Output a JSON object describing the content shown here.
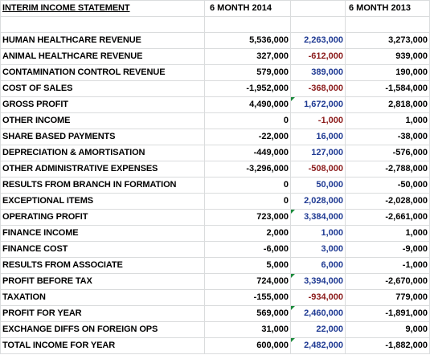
{
  "headers": {
    "statement": "INTERIM INCOME STATEMENT",
    "period_2014": "6 MONTH 2014",
    "period_2013": "6 MONTH 2013"
  },
  "rows": [
    {
      "label": "HUMAN HEALTHCARE REVENUE",
      "v2014": "5,536,000",
      "change": "2,263,000",
      "v2013": "3,273,000",
      "change_color": "blue",
      "flag": false
    },
    {
      "label": "ANIMAL HEALTHCARE REVENUE",
      "v2014": "327,000",
      "change": "-612,000",
      "v2013": "939,000",
      "change_color": "red",
      "flag": false
    },
    {
      "label": "CONTAMINATION CONTROL REVENUE",
      "v2014": "579,000",
      "change": "389,000",
      "v2013": "190,000",
      "change_color": "blue",
      "flag": false
    },
    {
      "label": "COST OF SALES",
      "v2014": "-1,952,000",
      "change": "-368,000",
      "v2013": "-1,584,000",
      "change_color": "red",
      "flag": false
    },
    {
      "label": "GROSS PROFIT",
      "v2014": "4,490,000",
      "change": "1,672,000",
      "v2013": "2,818,000",
      "change_color": "blue",
      "flag": true
    },
    {
      "label": "OTHER INCOME",
      "v2014": "0",
      "change": "-1,000",
      "v2013": "1,000",
      "change_color": "red",
      "flag": false
    },
    {
      "label": "SHARE BASED PAYMENTS",
      "v2014": "-22,000",
      "change": "16,000",
      "v2013": "-38,000",
      "change_color": "blue",
      "flag": false
    },
    {
      "label": "DEPRECIATION & AMORTISATION",
      "v2014": "-449,000",
      "change": "127,000",
      "v2013": "-576,000",
      "change_color": "blue",
      "flag": false
    },
    {
      "label": "OTHER ADMINISTRATIVE EXPENSES",
      "v2014": "-3,296,000",
      "change": "-508,000",
      "v2013": "-2,788,000",
      "change_color": "red",
      "flag": false
    },
    {
      "label": "RESULTS FROM BRANCH IN FORMATION",
      "v2014": "0",
      "change": "50,000",
      "v2013": "-50,000",
      "change_color": "blue",
      "flag": false
    },
    {
      "label": "EXCEPTIONAL ITEMS",
      "v2014": "0",
      "change": "2,028,000",
      "v2013": "-2,028,000",
      "change_color": "blue",
      "flag": false
    },
    {
      "label": "OPERATING PROFIT",
      "v2014": "723,000",
      "change": "3,384,000",
      "v2013": "-2,661,000",
      "change_color": "blue",
      "flag": true
    },
    {
      "label": "FINANCE INCOME",
      "v2014": "2,000",
      "change": "1,000",
      "v2013": "1,000",
      "change_color": "blue",
      "flag": false
    },
    {
      "label": "FINANCE COST",
      "v2014": "-6,000",
      "change": "3,000",
      "v2013": "-9,000",
      "change_color": "blue",
      "flag": false
    },
    {
      "label": "RESULTS FROM ASSOCIATE",
      "v2014": "5,000",
      "change": "6,000",
      "v2013": "-1,000",
      "change_color": "blue",
      "flag": false
    },
    {
      "label": "PROFIT BEFORE TAX",
      "v2014": "724,000",
      "change": "3,394,000",
      "v2013": "-2,670,000",
      "change_color": "blue",
      "flag": true
    },
    {
      "label": "TAXATION",
      "v2014": "-155,000",
      "change": "-934,000",
      "v2013": "779,000",
      "change_color": "red",
      "flag": false
    },
    {
      "label": "PROFIT FOR YEAR",
      "v2014": "569,000",
      "change": "2,460,000",
      "v2013": "-1,891,000",
      "change_color": "blue",
      "flag": true
    },
    {
      "label": "EXCHANGE DIFFS ON FOREIGN OPS",
      "v2014": "31,000",
      "change": "22,000",
      "v2013": "9,000",
      "change_color": "blue",
      "flag": false
    },
    {
      "label": "TOTAL INCOME FOR YEAR",
      "v2014": "600,000",
      "change": "2,482,000",
      "v2013": "-1,882,000",
      "change_color": "blue",
      "flag": true
    }
  ]
}
